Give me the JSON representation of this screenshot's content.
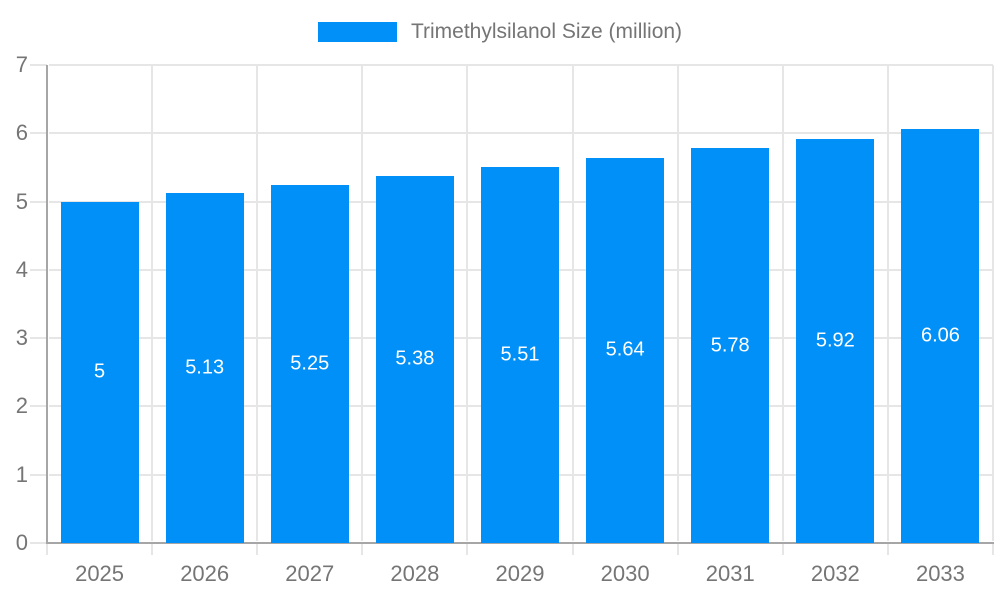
{
  "legend": {
    "label": "Trimethylsilanol Size (million)"
  },
  "colors": {
    "bar": "#0190f8",
    "grid": "#e6e6e6",
    "axis_line": "#a6a6a6",
    "axis_text": "#757575",
    "legend_text": "#757575",
    "bar_label_text": "#ffffff",
    "background": "#ffffff"
  },
  "chart_data": {
    "type": "bar",
    "title": "",
    "categories": [
      "2025",
      "2026",
      "2027",
      "2028",
      "2029",
      "2030",
      "2031",
      "2032",
      "2033"
    ],
    "series": [
      {
        "name": "Trimethylsilanol Size (million)",
        "values": [
          5,
          5.13,
          5.25,
          5.38,
          5.51,
          5.64,
          5.78,
          5.92,
          6.06
        ],
        "labels": [
          "5",
          "5.13",
          "5.25",
          "5.38",
          "5.51",
          "5.64",
          "5.78",
          "5.92",
          "6.06"
        ]
      }
    ],
    "xlabel": "",
    "ylabel": "",
    "ylim": [
      0,
      7
    ],
    "y_ticks": [
      0,
      1,
      2,
      3,
      4,
      5,
      6,
      7
    ],
    "y_tick_labels": [
      "0",
      "1",
      "2",
      "3",
      "4",
      "5",
      "6",
      "7"
    ],
    "grid": true,
    "legend_position": "top"
  }
}
